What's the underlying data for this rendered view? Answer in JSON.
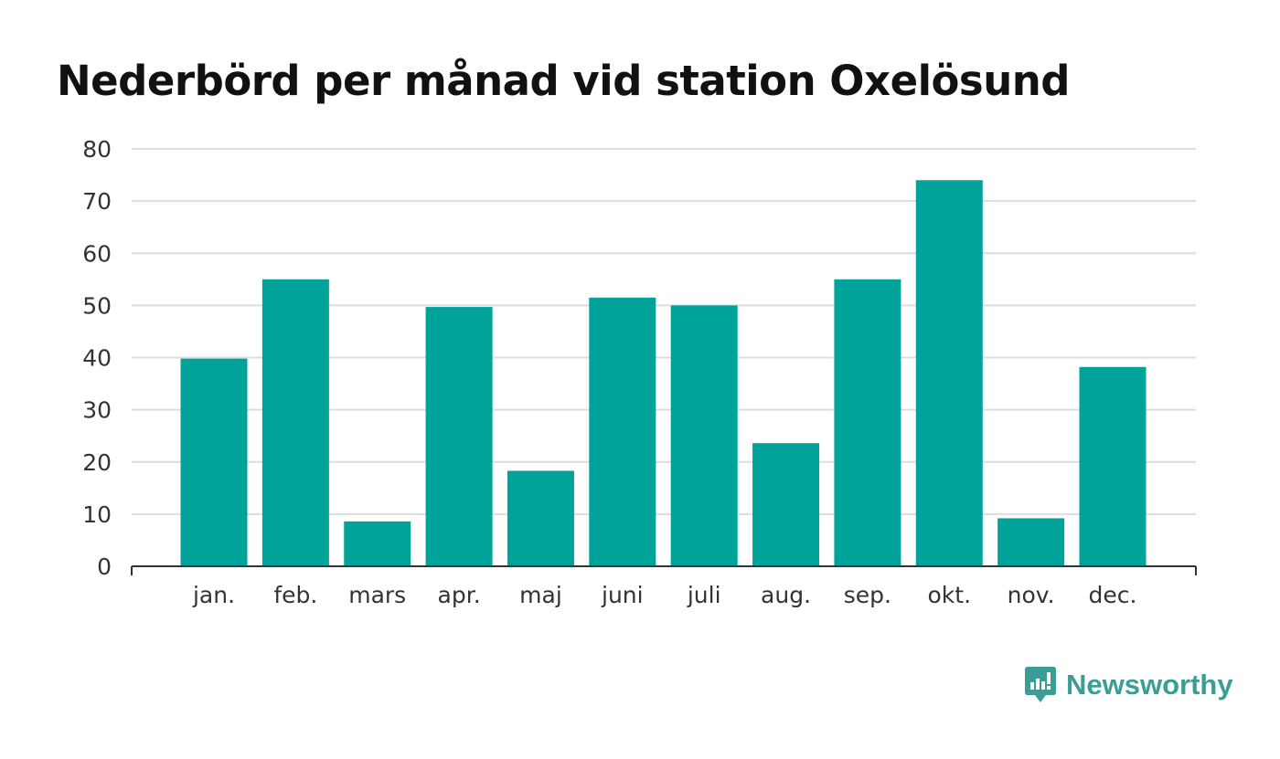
{
  "chart_data": {
    "type": "bar",
    "title": "Nederbörd per månad vid station Oxelösund",
    "categories": [
      "jan.",
      "feb.",
      "mars",
      "apr.",
      "maj",
      "juni",
      "juli",
      "aug.",
      "sep.",
      "okt.",
      "nov.",
      "dec."
    ],
    "values": [
      39.8,
      55,
      8.6,
      49.7,
      18.3,
      51.5,
      50,
      23.6,
      55,
      74,
      9.2,
      38.2
    ],
    "yticks": [
      0,
      10,
      20,
      30,
      40,
      50,
      60,
      70,
      80
    ],
    "ylim": [
      0,
      80
    ],
    "xlabel": "",
    "ylabel": "",
    "grid": true,
    "bar_color": "#00a399"
  },
  "brand": {
    "name": "Newsworthy",
    "icon": "newsworthy-logo-icon",
    "color": "#3a9e96"
  }
}
